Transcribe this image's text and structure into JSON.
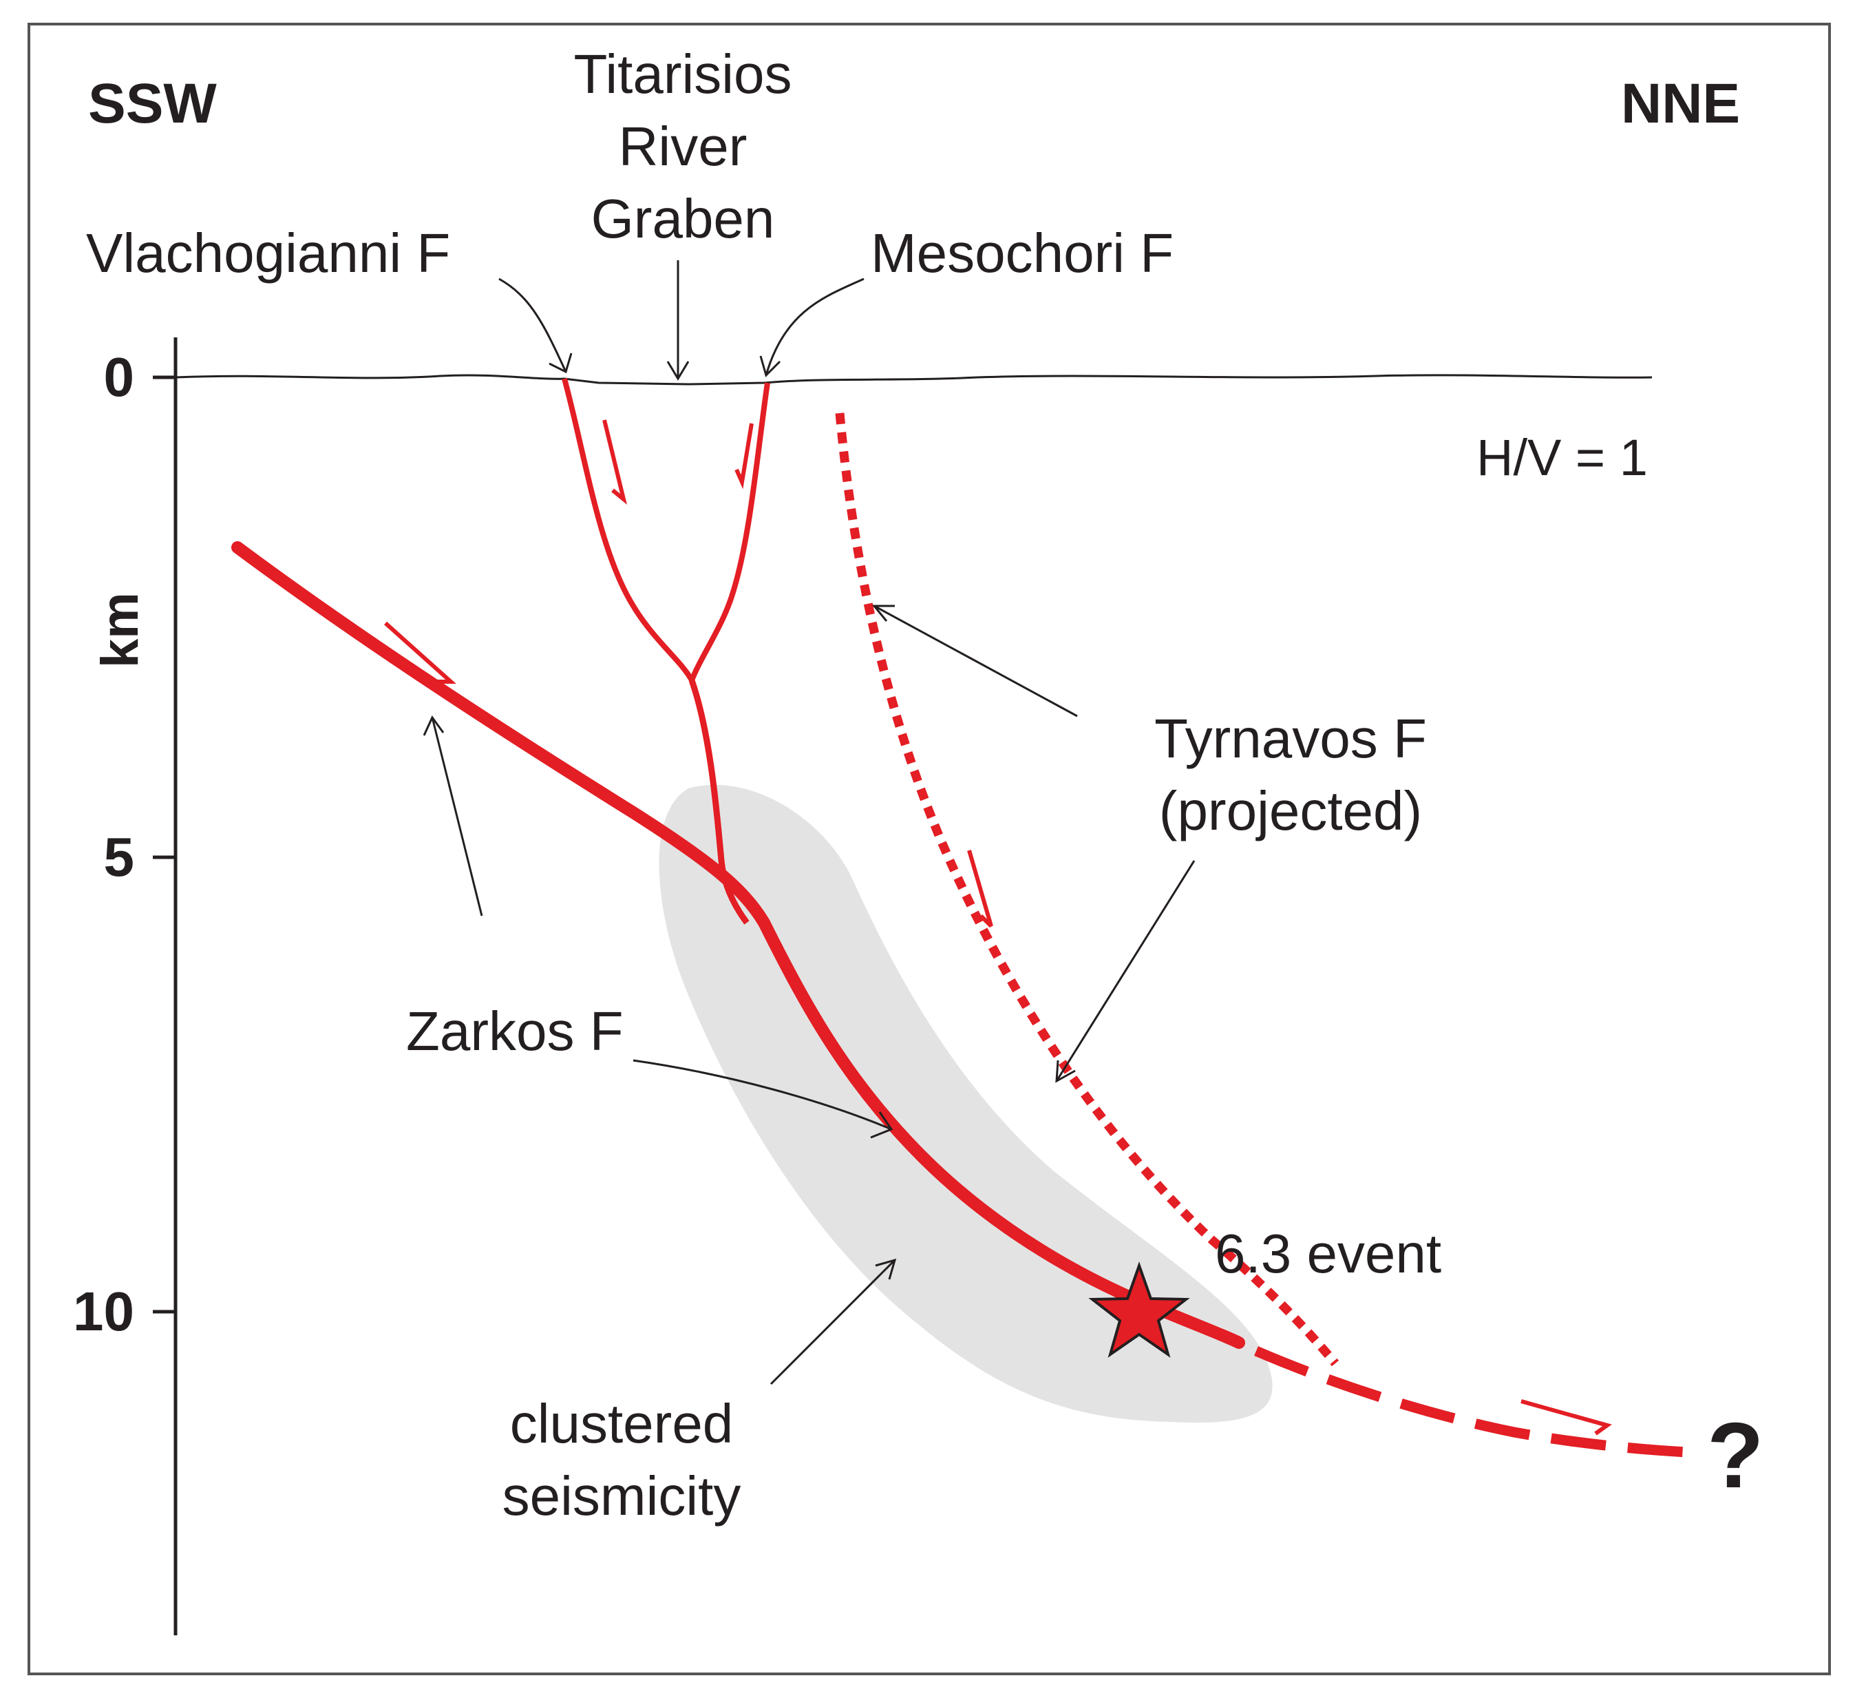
{
  "orientation": {
    "left": "SSW",
    "right": "NNE"
  },
  "scale_note": "H/V = 1",
  "depth_axis": {
    "label": "km",
    "ticks": [
      {
        "value": 0,
        "label": "0"
      },
      {
        "value": 5,
        "label": "5"
      },
      {
        "value": 10,
        "label": "10"
      }
    ]
  },
  "labels": {
    "graben_line1": "Titarisios",
    "graben_line2": "River",
    "graben_line3": "Graben",
    "vlachogianni": "Vlachogianni F",
    "mesochori": "Mesochori F",
    "tyrnavos_line1": "Tyrnavos F",
    "tyrnavos_line2": "(projected)",
    "zarkos": "Zarkos F",
    "event": "6.3 event",
    "seismicity_line1": "clustered",
    "seismicity_line2": "seismicity",
    "unknown": "?"
  },
  "colors": {
    "fault": "#e31e24",
    "seismicity": "#e3e3e3",
    "ink": "#231f20",
    "frame": "#555555"
  }
}
